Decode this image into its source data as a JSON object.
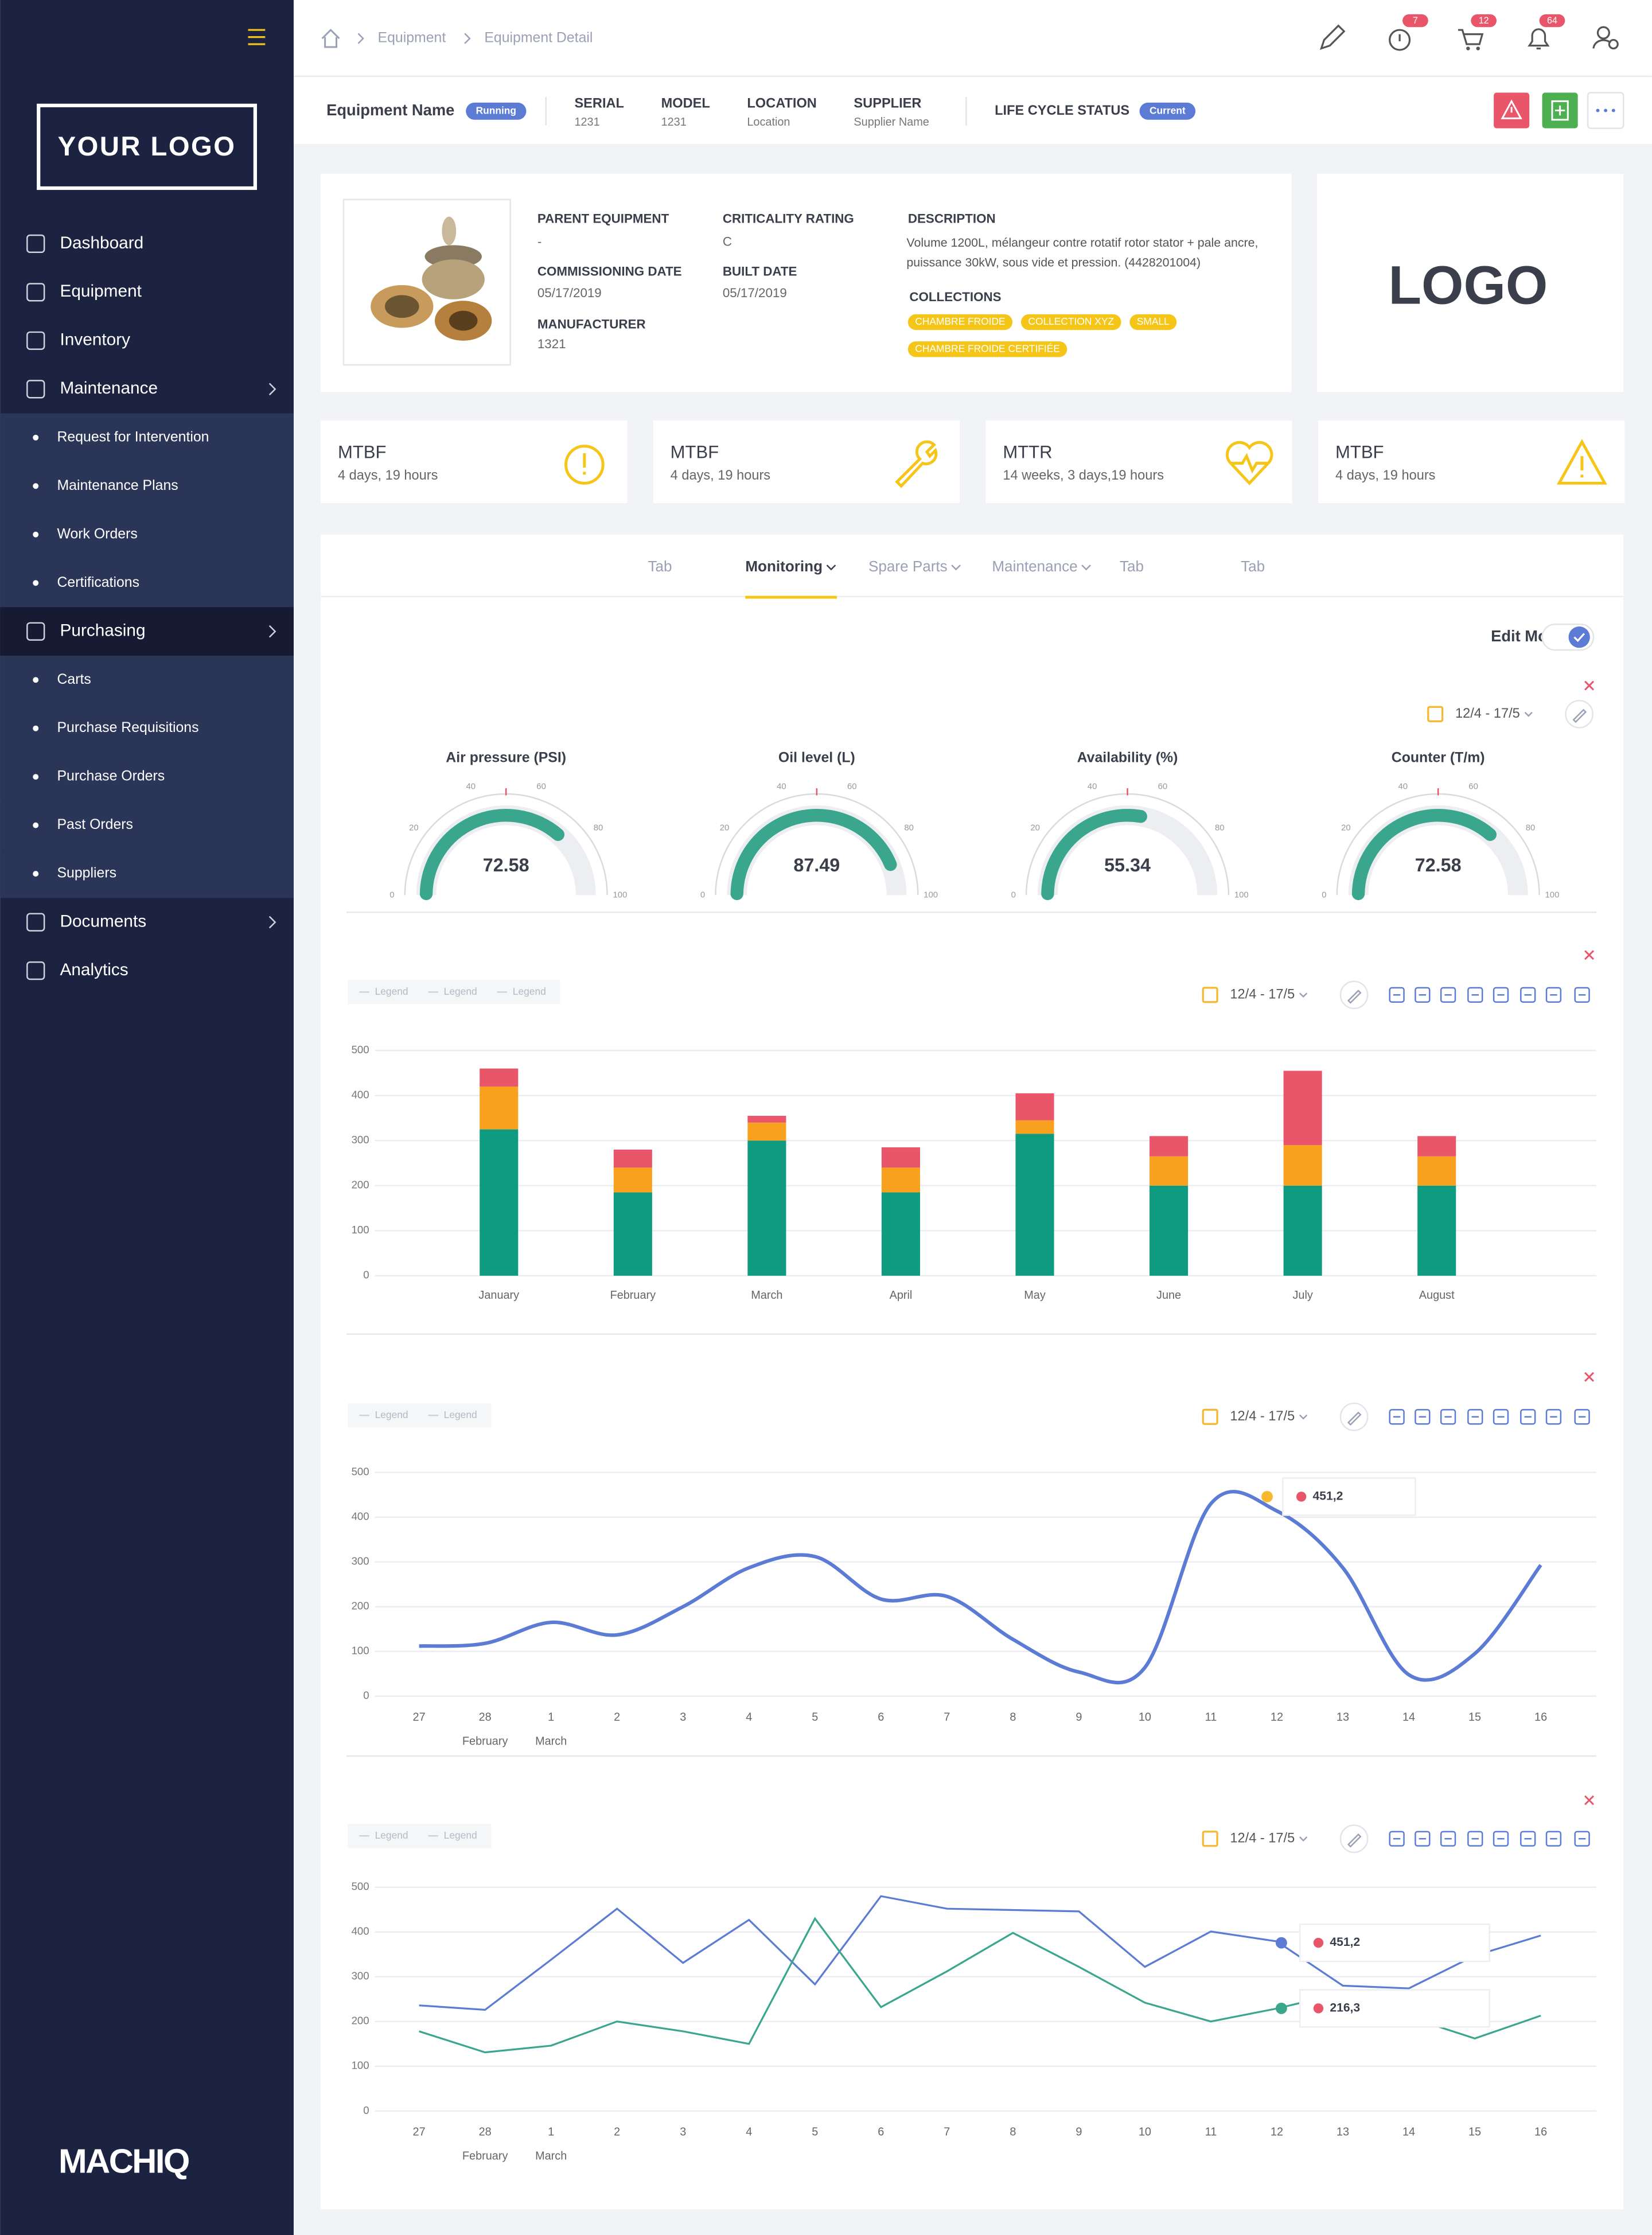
{
  "sidebar": {
    "logo": "YOUR LOGO",
    "brand": "MACHIQ",
    "menu": [
      {
        "label": "Dashboard"
      },
      {
        "label": "Equipment"
      },
      {
        "label": "Inventory"
      },
      {
        "label": "Maintenance",
        "children": [
          "Request for Intervention",
          "Maintenance Plans",
          "Work Orders",
          "Certifications"
        ]
      },
      {
        "label": "Purchasing",
        "selected": true,
        "children": [
          "Carts",
          "Purchase Requisitions",
          "Purchase Orders",
          "Past Orders",
          "Suppliers"
        ]
      },
      {
        "label": "Documents",
        "expandable": true
      },
      {
        "label": "Analytics"
      }
    ]
  },
  "breadcrumb": [
    "Equipment",
    "Equipment Detail"
  ],
  "badges": [
    7,
    12,
    64
  ],
  "header": {
    "name_label": "Equipment Name",
    "status": "Running",
    "fields": [
      {
        "label": "SERIAL",
        "value": "1231"
      },
      {
        "label": "MODEL",
        "value": "1231"
      },
      {
        "label": "LOCATION",
        "value": "Location"
      },
      {
        "label": "SUPPLIER",
        "value": "Supplier Name"
      }
    ],
    "lifecycle_label": "LIFE CYCLE STATUS",
    "lifecycle": "Current"
  },
  "details": {
    "columns": [
      [
        {
          "label": "PARENT EQUIPMENT",
          "value": "-"
        },
        {
          "label": "COMMISSIONING DATE",
          "value": "05/17/2019"
        },
        {
          "label": "MANUFACTURER",
          "value": "1321"
        }
      ],
      [
        {
          "label": "CRITICALITY RATING",
          "value": "C"
        },
        {
          "label": "BUILT DATE",
          "value": "05/17/2019"
        }
      ]
    ],
    "description_label": "DESCRIPTION",
    "description": "Volume 1200L, mélangeur contre rotatif rotor stator + pale ancre, puissance 30kW, sous vide et pression. (4428201004)",
    "collections_label": "COLLECTIONS",
    "collections": [
      "CHAMBRE FROIDE",
      "COLLECTION XYZ",
      "SMALL",
      "CHAMBRE FROIDE CERTIFIÉE"
    ]
  },
  "logo_box": "LOGO",
  "kpis": [
    {
      "label": "MTBF",
      "value": "4 days, 19 hours"
    },
    {
      "label": "MTBF",
      "value": "4 days, 19 hours"
    },
    {
      "label": "MTTR",
      "value": "14 weeks, 3 days,19 hours"
    },
    {
      "label": "MTBF",
      "value": "4 days, 19 hours"
    }
  ],
  "tabs": [
    {
      "label": "Tab"
    },
    {
      "label": "Monitoring",
      "dropdown": true
    },
    {
      "label": "Spare Parts",
      "dropdown": true
    },
    {
      "label": "Maintenance",
      "dropdown": true
    },
    {
      "label": "Tab"
    },
    {
      "label": "Tab"
    }
  ],
  "active_tab": 1,
  "edit_mode": "Edit Mode",
  "edit_mode_on": true,
  "date_range": "12/4 - 17/5",
  "chart_data": [
    {
      "type": "gauge",
      "ylim": [
        0,
        100
      ],
      "yticks": [
        0,
        20,
        40,
        60,
        80,
        100
      ],
      "color": "#3aa68e",
      "titles": [
        "Air pressure (PSI)",
        "Oil level (L)",
        "Availability (%)",
        "Counter (T/m)"
      ],
      "values": [
        72.58,
        87.49,
        55.34,
        72.58
      ]
    },
    {
      "type": "bar",
      "stacked": true,
      "legend": [
        "Legend",
        "Legend",
        "Legend"
      ],
      "categories": [
        "January",
        "February",
        "March",
        "April",
        "May",
        "June",
        "July",
        "August"
      ],
      "series": [
        {
          "color": "#0f9b80",
          "values": [
            325,
            185,
            300,
            185,
            315,
            200,
            200,
            200
          ]
        },
        {
          "color": "#f8a11f",
          "values": [
            95,
            55,
            40,
            55,
            30,
            65,
            90,
            65
          ]
        },
        {
          "color": "#e9566a",
          "values": [
            40,
            40,
            15,
            45,
            60,
            45,
            165,
            45
          ]
        }
      ],
      "ylim": [
        0,
        500
      ],
      "yticks": [
        0,
        100,
        200,
        300,
        400,
        500
      ],
      "grid": true
    },
    {
      "type": "line",
      "smooth": true,
      "legend": [
        "Legend",
        "Legend"
      ],
      "categories": [
        "27",
        "28",
        "1",
        "2",
        "3",
        "4",
        "5",
        "6",
        "7",
        "8",
        "9",
        "10",
        "11",
        "12",
        "13",
        "14",
        "15",
        "16"
      ],
      "x_sublabels": [
        null,
        "February",
        "March",
        null,
        null,
        null,
        null,
        null,
        null,
        null,
        null,
        null,
        null,
        null,
        null,
        null,
        null,
        null
      ],
      "series": [
        {
          "color": "#5b7bd5",
          "values": [
            112,
            118,
            165,
            137,
            200,
            287,
            312,
            217,
            223,
            127,
            54,
            64,
            430,
            414,
            287,
            48,
            95,
            293
          ]
        }
      ],
      "tooltips": [
        {
          "label": "451,2"
        }
      ],
      "ylim": [
        0,
        500
      ],
      "yticks": [
        0,
        100,
        200,
        300,
        400,
        500
      ],
      "grid": true
    },
    {
      "type": "line",
      "smooth": false,
      "legend": [
        "Legend",
        "Legend"
      ],
      "categories": [
        "27",
        "28",
        "1",
        "2",
        "3",
        "4",
        "5",
        "6",
        "7",
        "8",
        "9",
        "10",
        "11",
        "12",
        "13",
        "14",
        "15",
        "16"
      ],
      "x_sublabels": [
        null,
        "February",
        "March",
        null,
        null,
        null,
        null,
        null,
        null,
        null,
        null,
        null,
        null,
        null,
        null,
        null,
        null,
        null
      ],
      "series": [
        {
          "color": "#5b7bd5",
          "values": [
            236,
            226,
            338,
            452,
            331,
            427,
            283,
            480,
            452,
            449,
            446,
            322,
            401,
            379,
            280,
            274,
            347,
            392
          ]
        },
        {
          "color": "#3aa68e",
          "values": [
            178,
            131,
            146,
            200,
            178,
            150,
            430,
            232,
            312,
            398,
            322,
            242,
            200,
            229,
            264,
            210,
            162,
            213
          ]
        }
      ],
      "tooltips": [
        {
          "label": "451,2"
        },
        {
          "label": "216,3"
        }
      ],
      "ylim": [
        0,
        500
      ],
      "yticks": [
        0,
        100,
        200,
        300,
        400,
        500
      ],
      "grid": true
    }
  ]
}
